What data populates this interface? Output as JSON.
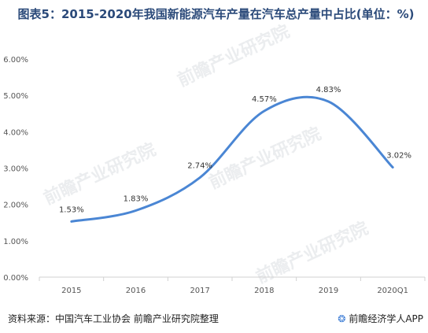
{
  "title": "图表5：2015-2020年我国新能源汽车产量在汽车总产量中占比(单位：%)",
  "footer": {
    "source": "资料来源：中国汽车工业协会 前瞻产业研究院整理",
    "brand_icon": "qianzhan-logo-icon",
    "brand": "前瞻经济学人APP"
  },
  "watermark": "前瞻产业研究院",
  "chart_data": {
    "type": "line",
    "title": "",
    "xlabel": "",
    "ylabel": "",
    "categories": [
      "2015",
      "2016",
      "2017",
      "2018",
      "2019",
      "2020Q1"
    ],
    "series": [
      {
        "values": [
          1.53,
          1.83,
          2.74,
          4.57,
          4.83,
          3.02
        ],
        "data_labels": [
          "1.53%",
          "1.83%",
          "2.74%",
          "4.57%",
          "4.83%",
          "3.02%"
        ],
        "color": "#4a86d4",
        "smooth": true
      }
    ],
    "ylim": [
      0,
      6
    ],
    "yticks": [
      "0.00%",
      "1.00%",
      "2.00%",
      "3.00%",
      "4.00%",
      "5.00%",
      "6.00%"
    ],
    "grid": false,
    "legend": "none"
  }
}
